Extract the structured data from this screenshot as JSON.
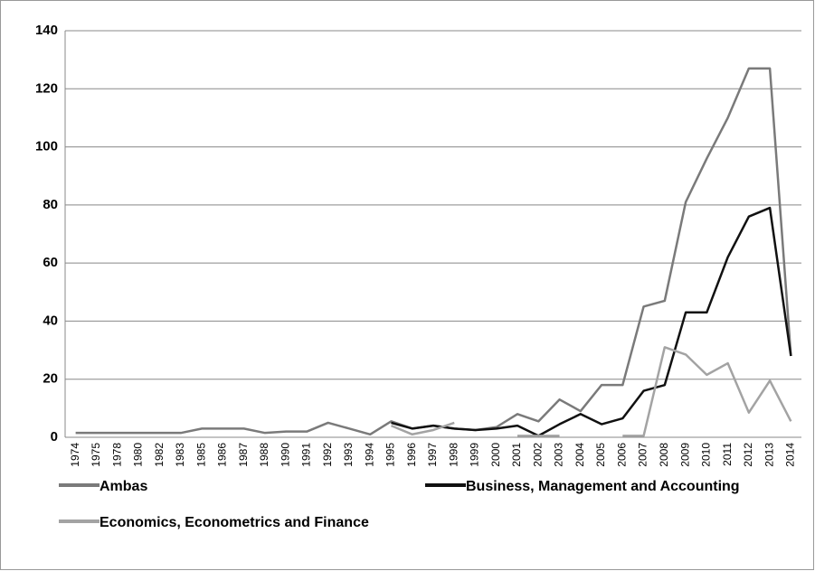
{
  "chart_data": {
    "type": "line",
    "categories": [
      "1974",
      "1975",
      "1978",
      "1980",
      "1982",
      "1983",
      "1985",
      "1986",
      "1987",
      "1988",
      "1990",
      "1991",
      "1992",
      "1993",
      "1994",
      "1995",
      "1996",
      "1997",
      "1998",
      "1999",
      "2000",
      "2001",
      "2002",
      "2003",
      "2004",
      "2005",
      "2006",
      "2007",
      "2008",
      "2009",
      "2010",
      "2011",
      "2012",
      "2013",
      "2014"
    ],
    "series": [
      {
        "name": "Ambas",
        "color": "#7a7a7a",
        "values": [
          1.5,
          1.5,
          1.5,
          1.5,
          1.5,
          1.5,
          3,
          3,
          3,
          1.5,
          2,
          2,
          5,
          3,
          1,
          5.5,
          3,
          4,
          3,
          2.5,
          3.5,
          8,
          5.5,
          13,
          9,
          18,
          18,
          45,
          47,
          81,
          96,
          110,
          127,
          127,
          28
        ]
      },
      {
        "name": "Business, Management and Accounting",
        "color": "#111111",
        "values": [
          null,
          null,
          null,
          null,
          null,
          null,
          null,
          null,
          null,
          null,
          null,
          null,
          null,
          null,
          null,
          5,
          3,
          4,
          3,
          2.5,
          3,
          4,
          0.5,
          4.5,
          8,
          4.5,
          6.5,
          16,
          18,
          43,
          43,
          62,
          76,
          79,
          28
        ]
      },
      {
        "name": "Economics, Econometrics and Finance",
        "color": "#a3a3a3",
        "values": [
          null,
          null,
          null,
          null,
          null,
          null,
          null,
          null,
          null,
          null,
          null,
          null,
          null,
          null,
          null,
          4,
          1,
          2.5,
          5,
          null,
          null,
          0.5,
          0.5,
          0.5,
          null,
          null,
          0.5,
          0.5,
          31,
          28.5,
          21.5,
          25.5,
          8.5,
          19.5,
          5.5
        ]
      }
    ],
    "ylim": [
      0,
      140
    ],
    "yticks": [
      0,
      20,
      40,
      60,
      80,
      100,
      120,
      140
    ],
    "grid": true
  }
}
